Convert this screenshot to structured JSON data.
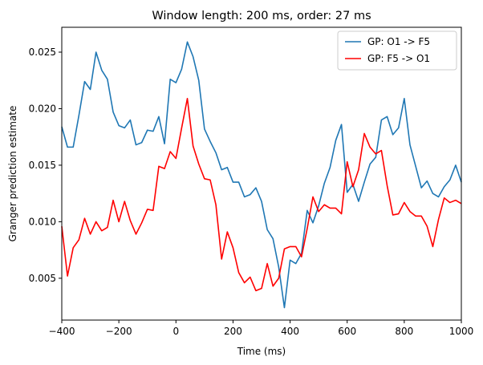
{
  "chart_data": {
    "type": "line",
    "title": "Window length: 200 ms, order: 27 ms",
    "xlabel": "Time (ms)",
    "ylabel": "Granger prediction estimate",
    "xlim": [
      -400,
      1000
    ],
    "ylim": [
      0.0013,
      0.0272
    ],
    "xticks": [
      -400,
      -200,
      0,
      200,
      400,
      600,
      800,
      1000
    ],
    "xtick_labels": [
      "−400",
      "−200",
      "0",
      "200",
      "400",
      "600",
      "800",
      "1000"
    ],
    "yticks": [
      0.005,
      0.01,
      0.015,
      0.02,
      0.025
    ],
    "ytick_labels": [
      "0.005",
      "0.010",
      "0.015",
      "0.020",
      "0.025"
    ],
    "grid": false,
    "legend_position": "top-right",
    "x": [
      -400,
      -380,
      -360,
      -340,
      -320,
      -300,
      -280,
      -260,
      -240,
      -220,
      -200,
      -180,
      -160,
      -140,
      -120,
      -100,
      -80,
      -60,
      -40,
      -20,
      0,
      20,
      40,
      60,
      80,
      100,
      120,
      140,
      160,
      180,
      200,
      220,
      240,
      260,
      280,
      300,
      320,
      340,
      360,
      380,
      400,
      420,
      440,
      460,
      480,
      500,
      520,
      540,
      560,
      580,
      600,
      620,
      640,
      660,
      680,
      700,
      720,
      740,
      760,
      780,
      800,
      820,
      840,
      860,
      880,
      900,
      920,
      940,
      960,
      980,
      1000
    ],
    "series": [
      {
        "name": "GP: O1 -> F5",
        "color": "#1f77b4",
        "values": [
          0.0184,
          0.0166,
          0.0166,
          0.0194,
          0.0224,
          0.0217,
          0.025,
          0.0234,
          0.0226,
          0.0197,
          0.0185,
          0.0183,
          0.019,
          0.0168,
          0.017,
          0.0181,
          0.018,
          0.0193,
          0.0169,
          0.0226,
          0.0223,
          0.0235,
          0.0259,
          0.0246,
          0.0225,
          0.0182,
          0.0171,
          0.0161,
          0.0146,
          0.0148,
          0.0135,
          0.0135,
          0.0122,
          0.0124,
          0.013,
          0.0118,
          0.0093,
          0.0085,
          0.006,
          0.0024,
          0.0066,
          0.0063,
          0.0072,
          0.011,
          0.0099,
          0.0114,
          0.0134,
          0.0148,
          0.0172,
          0.0186,
          0.0126,
          0.0133,
          0.0118,
          0.0135,
          0.0151,
          0.0157,
          0.019,
          0.0193,
          0.0177,
          0.0183,
          0.0209,
          0.0168,
          0.0149,
          0.013,
          0.0136,
          0.0125,
          0.0122,
          0.0131,
          0.0137,
          0.015,
          0.0135
        ]
      },
      {
        "name": "GP: F5 -> O1",
        "color": "#ff0000",
        "values": [
          0.0096,
          0.0052,
          0.0077,
          0.0084,
          0.0103,
          0.0089,
          0.01,
          0.0092,
          0.0095,
          0.0119,
          0.01,
          0.0118,
          0.0101,
          0.0089,
          0.0099,
          0.0111,
          0.011,
          0.0149,
          0.0147,
          0.0162,
          0.0156,
          0.0183,
          0.0209,
          0.0167,
          0.0151,
          0.0138,
          0.0137,
          0.0115,
          0.0067,
          0.0091,
          0.0077,
          0.0055,
          0.0046,
          0.0051,
          0.0039,
          0.0041,
          0.0063,
          0.0043,
          0.005,
          0.0076,
          0.0078,
          0.0078,
          0.0069,
          0.0094,
          0.0122,
          0.0109,
          0.0115,
          0.0112,
          0.0112,
          0.0107,
          0.0153,
          0.0131,
          0.0146,
          0.0178,
          0.0166,
          0.016,
          0.0163,
          0.0132,
          0.0106,
          0.0107,
          0.0117,
          0.0109,
          0.0105,
          0.0105,
          0.0096,
          0.0078,
          0.0102,
          0.0121,
          0.0117,
          0.0119,
          0.0116
        ]
      }
    ]
  }
}
